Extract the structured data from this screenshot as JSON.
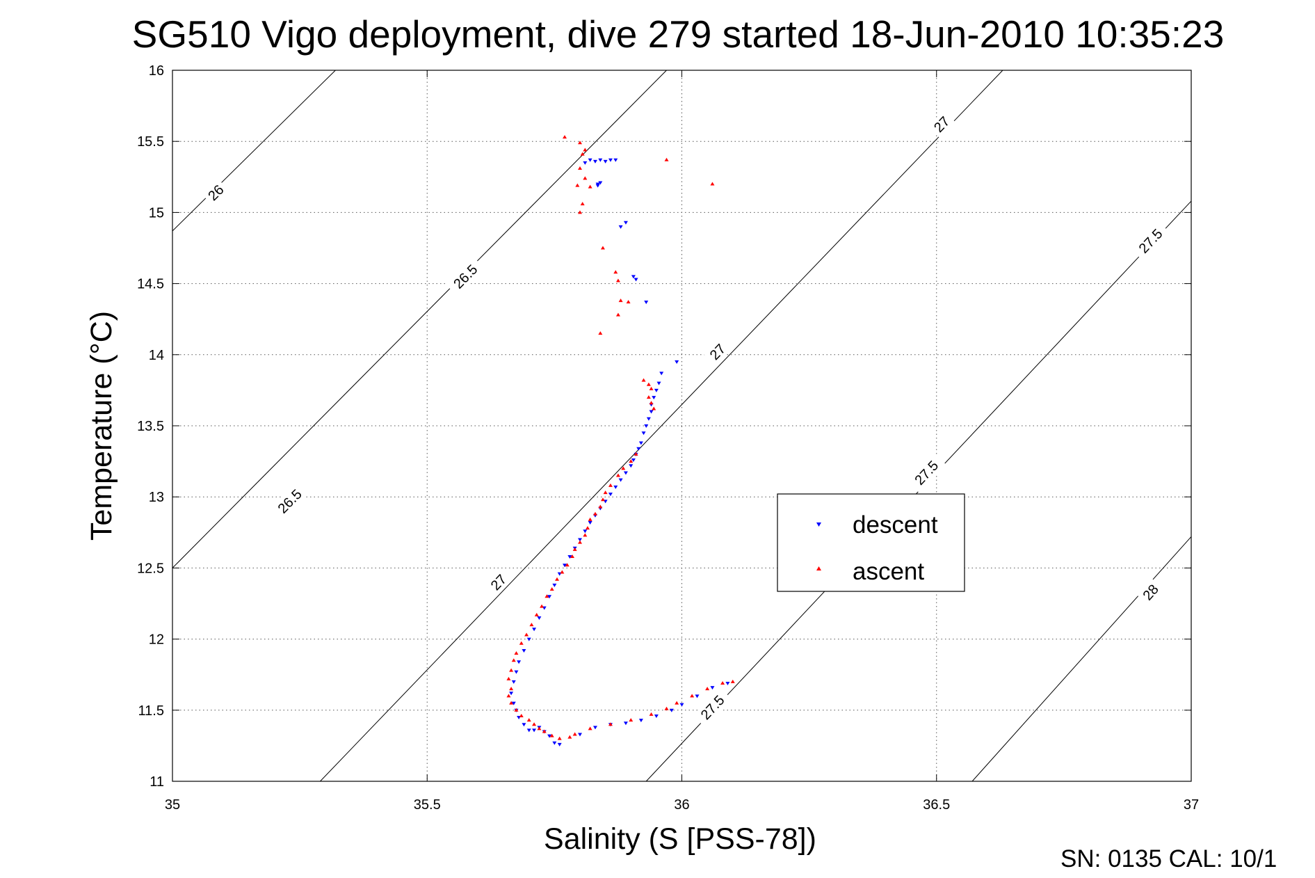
{
  "chart_data": {
    "type": "scatter",
    "title": "SG510 Vigo deployment, dive 279 started 18-Jun-2010 10:35:23",
    "xlabel": "Salinity (S [PSS-78])",
    "ylabel": "Temperature (°C)",
    "xlim": [
      35,
      37
    ],
    "ylim": [
      11,
      16
    ],
    "x_ticks": [
      "35",
      "35.5",
      "36",
      "36.5",
      "37"
    ],
    "y_ticks": [
      "11",
      "11.5",
      "12",
      "12.5",
      "13",
      "13.5",
      "14",
      "14.5",
      "15",
      "15.5",
      "16"
    ],
    "grid": true,
    "legend_position": "center-right",
    "footer": "SN: 0135  CAL: 10/1",
    "density_contours": [
      {
        "level": 26,
        "label": "26",
        "points": [
          [
            35.0,
            14.87
          ],
          [
            35.32,
            16.0
          ]
        ],
        "label_at": [
          35.085,
          15.14
        ]
      },
      {
        "level": 26.5,
        "label": "26.5",
        "points": [
          [
            35.0,
            12.5
          ],
          [
            35.97,
            16.0
          ]
        ],
        "label_at": [
          35.23,
          12.97
        ]
      },
      {
        "level": 26.5,
        "label": "26.5",
        "points": [
          [
            35.0,
            12.5
          ],
          [
            35.97,
            16.0
          ]
        ],
        "label_at": [
          35.575,
          14.55
        ]
      },
      {
        "level": 27,
        "label": "27",
        "points": [
          [
            35.29,
            11.0
          ],
          [
            36.63,
            16.0
          ]
        ],
        "label_at": [
          35.64,
          12.4
        ]
      },
      {
        "level": 27,
        "label": "27",
        "points": [
          [
            35.29,
            11.0
          ],
          [
            36.63,
            16.0
          ]
        ],
        "label_at": [
          36.07,
          14.02
        ]
      },
      {
        "level": 27,
        "label": "27",
        "points": [
          [
            35.29,
            11.0
          ],
          [
            36.63,
            16.0
          ]
        ],
        "label_at": [
          36.51,
          15.62
        ]
      },
      {
        "level": 27.5,
        "label": "27.5",
        "points": [
          [
            35.93,
            11.0
          ],
          [
            37.0,
            15.08
          ]
        ],
        "label_at": [
          36.06,
          11.52
        ]
      },
      {
        "level": 27.5,
        "label": "27.5",
        "points": [
          [
            35.93,
            11.0
          ],
          [
            37.0,
            15.08
          ]
        ],
        "label_at": [
          36.48,
          13.17
        ]
      },
      {
        "level": 27.5,
        "label": "27.5",
        "points": [
          [
            35.93,
            11.0
          ],
          [
            37.0,
            15.08
          ]
        ],
        "label_at": [
          36.92,
          14.8
        ]
      },
      {
        "level": 28,
        "label": "28",
        "points": [
          [
            36.57,
            11.0
          ],
          [
            37.0,
            12.72
          ]
        ],
        "label_at": [
          36.92,
          12.33
        ]
      }
    ],
    "series": [
      {
        "name": "descent",
        "color": "#0000ff",
        "marker": "triangle-down",
        "points": [
          [
            35.82,
            15.37
          ],
          [
            35.83,
            15.36
          ],
          [
            35.84,
            15.37
          ],
          [
            35.85,
            15.36
          ],
          [
            35.86,
            15.37
          ],
          [
            35.87,
            15.37
          ],
          [
            35.81,
            15.35
          ],
          [
            35.835,
            15.2
          ],
          [
            35.84,
            15.21
          ],
          [
            35.835,
            15.19
          ],
          [
            35.89,
            14.93
          ],
          [
            35.88,
            14.9
          ],
          [
            35.91,
            14.53
          ],
          [
            35.905,
            14.55
          ],
          [
            35.93,
            14.37
          ],
          [
            35.99,
            13.95
          ],
          [
            35.96,
            13.87
          ],
          [
            35.955,
            13.8
          ],
          [
            35.95,
            13.75
          ],
          [
            35.945,
            13.7
          ],
          [
            35.94,
            13.65
          ],
          [
            35.94,
            13.6
          ],
          [
            35.935,
            13.55
          ],
          [
            35.93,
            13.5
          ],
          [
            35.925,
            13.45
          ],
          [
            35.92,
            13.38
          ],
          [
            35.915,
            13.34
          ],
          [
            35.91,
            13.3
          ],
          [
            35.905,
            13.26
          ],
          [
            35.9,
            13.22
          ],
          [
            35.89,
            13.17
          ],
          [
            35.88,
            13.12
          ],
          [
            35.87,
            13.07
          ],
          [
            35.86,
            13.02
          ],
          [
            35.85,
            12.97
          ],
          [
            35.84,
            12.92
          ],
          [
            35.83,
            12.87
          ],
          [
            35.82,
            12.82
          ],
          [
            35.81,
            12.76
          ],
          [
            35.8,
            12.7
          ],
          [
            35.79,
            12.64
          ],
          [
            35.78,
            12.58
          ],
          [
            35.77,
            12.52
          ],
          [
            35.76,
            12.46
          ],
          [
            35.75,
            12.38
          ],
          [
            35.74,
            12.3
          ],
          [
            35.73,
            12.22
          ],
          [
            35.72,
            12.15
          ],
          [
            35.71,
            12.07
          ],
          [
            35.7,
            12.0
          ],
          [
            35.69,
            11.92
          ],
          [
            35.68,
            11.84
          ],
          [
            35.675,
            11.77
          ],
          [
            35.67,
            11.7
          ],
          [
            35.665,
            11.62
          ],
          [
            35.67,
            11.55
          ],
          [
            35.675,
            11.5
          ],
          [
            35.68,
            11.45
          ],
          [
            35.69,
            11.4
          ],
          [
            35.7,
            11.36
          ],
          [
            35.71,
            11.36
          ],
          [
            35.72,
            11.38
          ],
          [
            35.73,
            11.35
          ],
          [
            35.74,
            11.32
          ],
          [
            35.75,
            11.27
          ],
          [
            35.76,
            11.26
          ],
          [
            35.8,
            11.33
          ],
          [
            35.83,
            11.38
          ],
          [
            35.86,
            11.4
          ],
          [
            35.89,
            11.41
          ],
          [
            35.92,
            11.43
          ],
          [
            35.95,
            11.46
          ],
          [
            35.98,
            11.5
          ],
          [
            36.0,
            11.54
          ],
          [
            36.03,
            11.6
          ],
          [
            36.06,
            11.66
          ],
          [
            36.09,
            11.69
          ]
        ]
      },
      {
        "name": "ascent",
        "color": "#ff0000",
        "marker": "triangle-up",
        "points": [
          [
            35.77,
            15.53
          ],
          [
            35.8,
            15.49
          ],
          [
            35.81,
            15.44
          ],
          [
            35.805,
            15.41
          ],
          [
            35.8,
            15.31
          ],
          [
            35.81,
            15.24
          ],
          [
            35.795,
            15.19
          ],
          [
            35.82,
            15.18
          ],
          [
            35.805,
            15.06
          ],
          [
            35.8,
            15.0
          ],
          [
            35.97,
            15.37
          ],
          [
            36.06,
            15.2
          ],
          [
            35.845,
            14.75
          ],
          [
            35.87,
            14.58
          ],
          [
            35.875,
            14.52
          ],
          [
            35.88,
            14.38
          ],
          [
            35.895,
            14.37
          ],
          [
            35.875,
            14.28
          ],
          [
            35.84,
            14.15
          ],
          [
            35.925,
            13.82
          ],
          [
            35.935,
            13.79
          ],
          [
            35.94,
            13.76
          ],
          [
            35.935,
            13.7
          ],
          [
            35.94,
            13.66
          ],
          [
            35.945,
            13.62
          ],
          [
            35.91,
            13.3
          ],
          [
            35.9,
            13.25
          ],
          [
            35.885,
            13.2
          ],
          [
            35.875,
            13.15
          ],
          [
            35.86,
            13.08
          ],
          [
            35.85,
            13.03
          ],
          [
            35.845,
            12.98
          ],
          [
            35.84,
            12.93
          ],
          [
            35.83,
            12.88
          ],
          [
            35.82,
            12.84
          ],
          [
            35.815,
            12.78
          ],
          [
            35.81,
            12.73
          ],
          [
            35.8,
            12.68
          ],
          [
            35.79,
            12.63
          ],
          [
            35.785,
            12.58
          ],
          [
            35.775,
            12.52
          ],
          [
            35.765,
            12.47
          ],
          [
            35.755,
            12.42
          ],
          [
            35.745,
            12.35
          ],
          [
            35.735,
            12.3
          ],
          [
            35.725,
            12.23
          ],
          [
            35.715,
            12.17
          ],
          [
            35.705,
            12.1
          ],
          [
            35.695,
            12.03
          ],
          [
            35.685,
            11.97
          ],
          [
            35.675,
            11.9
          ],
          [
            35.67,
            11.85
          ],
          [
            35.665,
            11.78
          ],
          [
            35.66,
            11.72
          ],
          [
            35.665,
            11.65
          ],
          [
            35.66,
            11.6
          ],
          [
            35.665,
            11.55
          ],
          [
            35.675,
            11.5
          ],
          [
            35.685,
            11.46
          ],
          [
            35.7,
            11.43
          ],
          [
            35.71,
            11.4
          ],
          [
            35.72,
            11.37
          ],
          [
            35.73,
            11.35
          ],
          [
            35.745,
            11.32
          ],
          [
            35.76,
            11.3
          ],
          [
            35.78,
            11.31
          ],
          [
            35.79,
            11.33
          ],
          [
            35.82,
            11.37
          ],
          [
            35.86,
            11.4
          ],
          [
            35.9,
            11.43
          ],
          [
            35.94,
            11.47
          ],
          [
            35.97,
            11.51
          ],
          [
            35.99,
            11.55
          ],
          [
            36.02,
            11.6
          ],
          [
            36.05,
            11.65
          ],
          [
            36.08,
            11.69
          ],
          [
            36.1,
            11.7
          ]
        ]
      }
    ]
  }
}
